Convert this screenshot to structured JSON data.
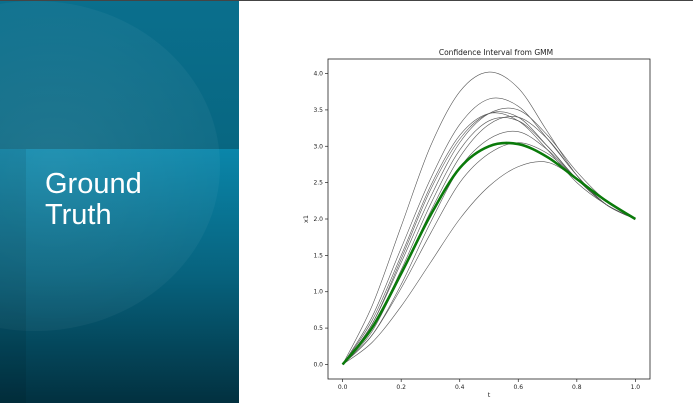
{
  "slide": {
    "title": "Ground\nTruth"
  },
  "chart_data": {
    "type": "line",
    "title": "Confidence Interval from GMM",
    "xlabel": "t",
    "ylabel": "x1",
    "xlim": [
      -0.05,
      1.05
    ],
    "ylim": [
      -0.2,
      4.2
    ],
    "xticks": [
      "0.0",
      "0.2",
      "0.4",
      "0.6",
      "0.8",
      "1.0"
    ],
    "yticks": [
      "0.0",
      "0.5",
      "1.0",
      "1.5",
      "2.0",
      "2.5",
      "3.0",
      "3.5",
      "4.0"
    ],
    "grid": false,
    "legend": "none",
    "x": [
      0.0,
      0.1,
      0.2,
      0.3,
      0.4,
      0.5,
      0.6,
      0.7,
      0.8,
      0.9,
      1.0
    ],
    "highlight_color": "#0a7a0a",
    "sample_color": "#555555",
    "series": [
      {
        "values": [
          0.0,
          0.5,
          1.25,
          2.05,
          2.7,
          3.0,
          3.03,
          2.85,
          2.55,
          2.25,
          2.0
        ],
        "highlight": true
      },
      {
        "values": [
          0.0,
          0.8,
          1.9,
          3.0,
          3.75,
          4.02,
          3.8,
          3.2,
          2.6,
          2.2,
          2.0
        ]
      },
      {
        "values": [
          0.0,
          0.65,
          1.6,
          2.55,
          3.3,
          3.65,
          3.55,
          3.1,
          2.6,
          2.2,
          2.0
        ]
      },
      {
        "values": [
          0.0,
          0.55,
          1.45,
          2.4,
          3.1,
          3.45,
          3.4,
          3.0,
          2.55,
          2.2,
          2.0
        ]
      },
      {
        "values": [
          0.0,
          0.6,
          1.5,
          2.45,
          3.15,
          3.45,
          3.35,
          2.95,
          2.5,
          2.2,
          2.0
        ]
      },
      {
        "values": [
          0.0,
          0.5,
          1.3,
          2.2,
          2.95,
          3.35,
          3.35,
          3.0,
          2.55,
          2.2,
          2.0
        ]
      },
      {
        "values": [
          0.0,
          0.45,
          1.25,
          2.1,
          2.85,
          3.3,
          3.4,
          3.1,
          2.6,
          2.2,
          2.0
        ]
      },
      {
        "values": [
          0.0,
          0.4,
          1.1,
          1.95,
          2.7,
          3.1,
          3.2,
          2.95,
          2.55,
          2.2,
          2.0
        ]
      },
      {
        "values": [
          0.0,
          0.4,
          1.05,
          1.8,
          2.5,
          2.9,
          3.05,
          2.9,
          2.55,
          2.2,
          2.0
        ]
      },
      {
        "values": [
          0.0,
          0.3,
          0.8,
          1.4,
          2.0,
          2.45,
          2.72,
          2.78,
          2.55,
          2.25,
          2.0
        ]
      },
      {
        "values": [
          0.0,
          0.55,
          1.4,
          2.3,
          3.05,
          3.45,
          3.5,
          3.15,
          2.65,
          2.25,
          2.0
        ]
      }
    ]
  }
}
